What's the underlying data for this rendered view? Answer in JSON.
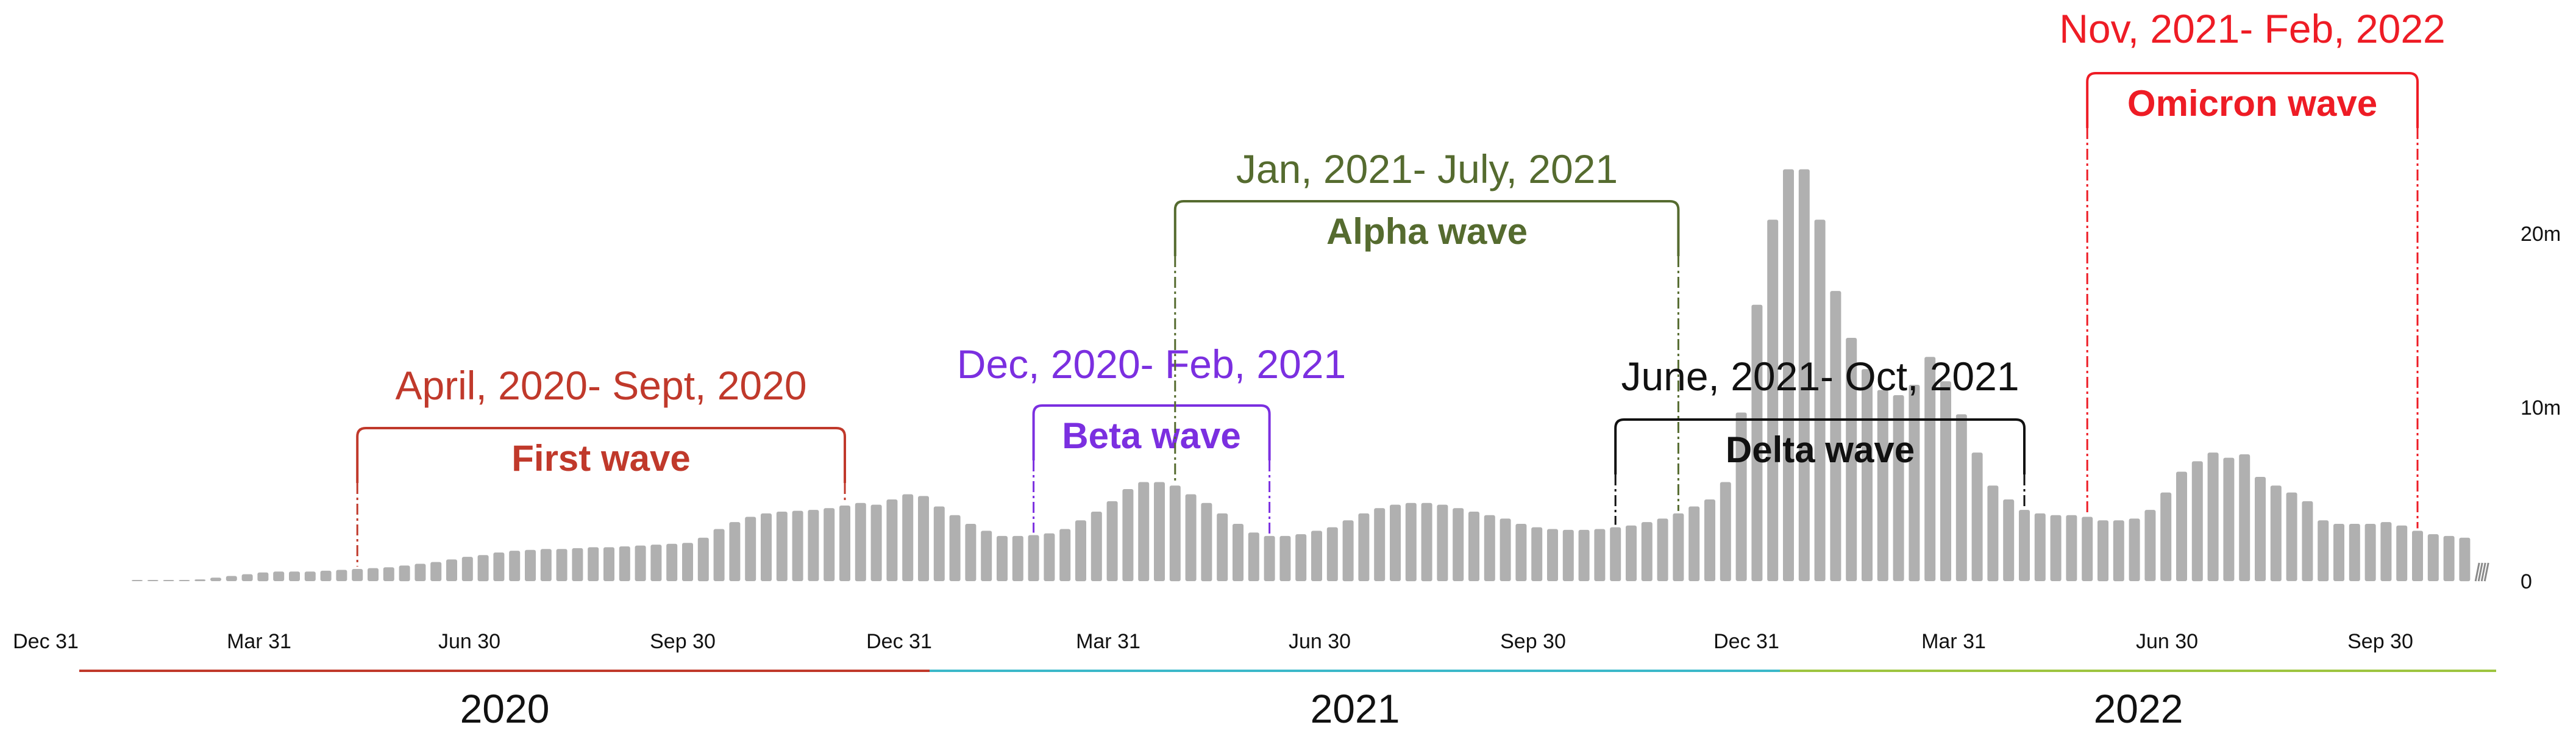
{
  "chart_data": {
    "type": "bar",
    "title": "",
    "xlabel": "",
    "ylabel": "",
    "x_tick_labels": [
      "Dec 31",
      "Mar 31",
      "Jun 30",
      "Sep 30",
      "Dec 31",
      "Mar 31",
      "Jun 30",
      "Sep 30",
      "Dec 31",
      "Mar 31",
      "Jun 30",
      "Sep 30"
    ],
    "y_tick_labels": [
      "0",
      "10m",
      "20m"
    ],
    "ylim": [
      0,
      24
    ],
    "y_unit": "millions",
    "years": [
      {
        "label": "2020",
        "color": "#c0392b"
      },
      {
        "label": "2021",
        "color": "#3bb8c9"
      },
      {
        "label": "2022",
        "color": "#9dc43f"
      }
    ],
    "bar_color": "#b0b0b0",
    "series": [
      {
        "values": [
          0.02,
          0.03,
          0.03,
          0.05,
          0.1,
          0.2,
          0.3,
          0.4,
          0.5,
          0.55,
          0.55,
          0.55,
          0.6,
          0.65,
          0.7,
          0.75,
          0.8,
          0.9,
          1.0,
          1.1,
          1.25,
          1.4,
          1.5,
          1.65,
          1.75,
          1.8,
          1.85,
          1.85,
          1.9,
          1.95,
          1.95,
          2.0,
          2.05,
          2.1,
          2.15,
          2.2,
          2.5,
          3.0,
          3.4,
          3.7,
          3.9,
          4.0,
          4.05,
          4.1,
          4.2,
          4.35,
          4.5,
          4.4,
          4.7,
          5.0,
          4.9,
          4.3,
          3.8,
          3.3,
          2.9,
          2.6,
          2.6,
          2.65,
          2.75,
          3.0,
          3.5,
          4.0,
          4.6,
          5.3,
          5.7,
          5.7,
          5.5,
          5.0,
          4.5,
          3.9,
          3.3,
          2.8,
          2.6,
          2.6,
          2.7,
          2.9,
          3.1,
          3.5,
          3.9,
          4.2,
          4.4,
          4.5,
          4.5,
          4.4,
          4.2,
          4.0,
          3.8,
          3.6,
          3.3,
          3.1,
          3.0,
          2.95,
          2.95,
          3.0,
          3.1,
          3.2,
          3.4,
          3.6,
          3.9,
          4.3,
          4.7,
          5.7,
          9.7,
          15.9,
          20.8,
          23.7,
          23.7,
          20.8,
          16.7,
          14.0,
          12.2,
          11.0,
          10.7,
          11.3,
          12.9,
          11.5,
          9.6,
          7.4,
          5.5,
          4.7,
          4.1,
          3.9,
          3.8,
          3.8,
          3.7,
          3.5,
          3.5,
          3.6,
          4.1,
          5.1,
          6.3,
          6.9,
          7.4,
          7.1,
          7.3,
          6.0,
          5.5,
          5.1,
          4.6,
          3.5,
          3.3,
          3.3,
          3.3,
          3.4,
          3.2,
          2.9,
          2.7,
          2.6,
          2.5
        ]
      }
    ],
    "annotations": [
      {
        "range_label": "April, 2020- Sept, 2020",
        "wave_label": "First wave",
        "color": "#c0392b",
        "start_bar": 14,
        "end_bar": 45
      },
      {
        "range_label": "Dec, 2020- Feb, 2021",
        "wave_label": "Beta wave",
        "color": "#7b2fe0",
        "start_bar": 57,
        "end_bar": 72
      },
      {
        "range_label": "Jan, 2021- July, 2021",
        "wave_label": "Alpha wave",
        "color": "#556b2f",
        "start_bar": 66,
        "end_bar": 98
      },
      {
        "range_label": "June, 2021- Oct, 2021",
        "wave_label": "Delta wave",
        "color": "#111111",
        "start_bar": 94,
        "end_bar": 120
      },
      {
        "range_label": "Nov, 2021- Feb, 2022",
        "wave_label": "Omicron wave",
        "color": "#ee1c25",
        "start_bar": 124,
        "end_bar": 145
      }
    ]
  }
}
